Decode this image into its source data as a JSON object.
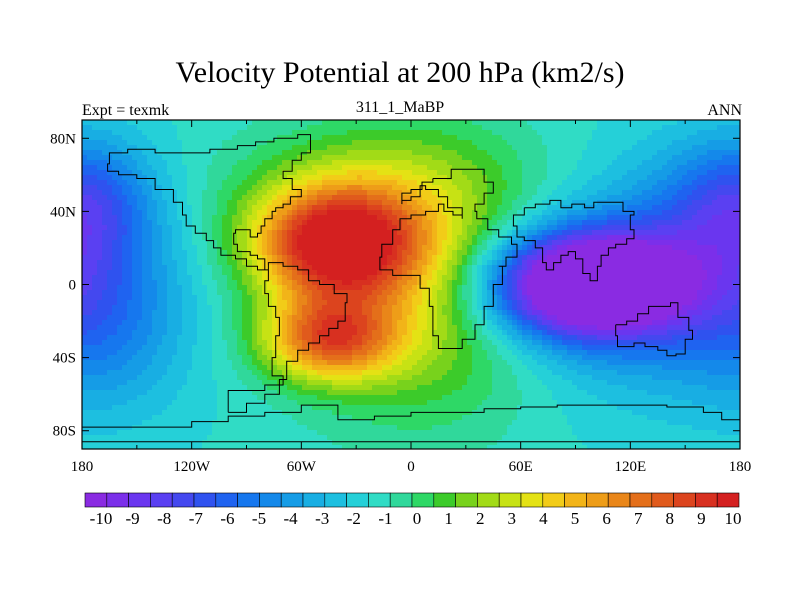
{
  "chart_data": {
    "type": "heatmap",
    "title": "Velocity Potential at 200 hPa (km2/s)",
    "left_string": "Expt = texmk",
    "center_string": "311_1_MaBP",
    "right_string": "ANN",
    "x_ticks": [
      "180",
      "120W",
      "60W",
      "0",
      "60E",
      "120E",
      "180"
    ],
    "x_tick_values": [
      -180,
      -120,
      -60,
      0,
      60,
      120,
      180
    ],
    "y_ticks": [
      "80N",
      "40N",
      "0",
      "40S",
      "80S"
    ],
    "y_tick_values": [
      80,
      40,
      0,
      -40,
      -80
    ],
    "lon_range": [
      -180,
      180
    ],
    "lat_range": [
      -90,
      90
    ],
    "colorbar_labels": [
      "-10",
      "-9",
      "-8",
      "-7",
      "-6",
      "-5",
      "-4",
      "-3",
      "-2",
      "-1",
      "0",
      "1",
      "2",
      "3",
      "4",
      "5",
      "6",
      "7",
      "8",
      "9",
      "10"
    ],
    "colorbar_range": [
      -10.5,
      10.5
    ],
    "colorbar_colors": [
      "#8a2be2",
      "#7b2fea",
      "#6a36ef",
      "#5a40f2",
      "#4448ef",
      "#2f52ef",
      "#1f63f0",
      "#1677ee",
      "#1489ea",
      "#159ce6",
      "#18aee3",
      "#1dbfe0",
      "#25d0d8",
      "#30dcc5",
      "#30d89b",
      "#2ed866",
      "#3ccb2a",
      "#78d21c",
      "#a2db17",
      "#c7e214",
      "#e4e214",
      "#f2cc18",
      "#f2b418",
      "#ee9d18",
      "#e98619",
      "#e46f1a",
      "#e05a1c",
      "#dc441e",
      "#d83020",
      "#d42020"
    ],
    "field_centers": [
      {
        "lon": -42,
        "lat": 22,
        "value": 11.0,
        "sx": 32,
        "sy": 22
      },
      {
        "lon": -45,
        "lat": -30,
        "value": 8.0,
        "sx": 26,
        "sy": 16
      },
      {
        "lon": 5,
        "lat": 0,
        "value": 4.5,
        "sx": 45,
        "sy": 50
      },
      {
        "lon": -20,
        "lat": 55,
        "value": 2.0,
        "sx": 60,
        "sy": 25
      },
      {
        "lon": 95,
        "lat": 0,
        "value": -13.0,
        "sx": 38,
        "sy": 20
      },
      {
        "lon": 140,
        "lat": 0,
        "value": -4.0,
        "sx": 50,
        "sy": 40
      },
      {
        "lon": -175,
        "lat": 45,
        "value": -3.0,
        "sx": 25,
        "sy": 25
      },
      {
        "lon": -165,
        "lat": -20,
        "value": -2.5,
        "sx": 30,
        "sy": 35
      },
      {
        "lon": 170,
        "lat": 45,
        "value": -2.0,
        "sx": 30,
        "sy": 25
      }
    ],
    "field_background": -1.3,
    "coastlines": [
      {
        "name": "eurasia-africa",
        "points": [
          [
            12,
            58
          ],
          [
            22,
            63
          ],
          [
            33,
            63
          ],
          [
            40,
            56
          ],
          [
            45,
            50
          ],
          [
            40,
            44
          ],
          [
            35,
            40
          ],
          [
            36,
            36
          ],
          [
            42,
            30
          ],
          [
            48,
            26
          ],
          [
            55,
            22
          ],
          [
            58,
            15
          ],
          [
            52,
            10
          ],
          [
            48,
            10
          ],
          [
            50,
            0
          ],
          [
            45,
            -12
          ],
          [
            40,
            -22
          ],
          [
            35,
            -30
          ],
          [
            28,
            -35
          ],
          [
            20,
            -35
          ],
          [
            15,
            -28
          ],
          [
            12,
            -12
          ],
          [
            10,
            -2
          ],
          [
            5,
            5
          ],
          [
            -5,
            5
          ],
          [
            -10,
            8
          ],
          [
            -17,
            15
          ],
          [
            -16,
            22
          ],
          [
            -10,
            30
          ],
          [
            -6,
            36
          ],
          [
            0,
            38
          ],
          [
            8,
            40
          ],
          [
            15,
            44
          ],
          [
            18,
            40
          ],
          [
            23,
            38
          ],
          [
            28,
            36
          ],
          [
            28,
            42
          ],
          [
            20,
            48
          ],
          [
            15,
            52
          ],
          [
            8,
            54
          ],
          [
            5,
            48
          ],
          [
            0,
            46
          ],
          [
            -5,
            44
          ],
          [
            -5,
            50
          ],
          [
            0,
            52
          ],
          [
            6,
            56
          ],
          [
            12,
            58
          ]
        ]
      },
      {
        "name": "asia",
        "points": [
          [
            62,
            42
          ],
          [
            68,
            44
          ],
          [
            76,
            46
          ],
          [
            82,
            42
          ],
          [
            88,
            44
          ],
          [
            95,
            42
          ],
          [
            100,
            45
          ],
          [
            108,
            45
          ],
          [
            116,
            40
          ],
          [
            122,
            38
          ],
          [
            120,
            30
          ],
          [
            122,
            25
          ],
          [
            118,
            22
          ],
          [
            112,
            20
          ],
          [
            108,
            16
          ],
          [
            104,
            10
          ],
          [
            102,
            2
          ],
          [
            98,
            6
          ],
          [
            94,
            14
          ],
          [
            90,
            18
          ],
          [
            86,
            16
          ],
          [
            82,
            12
          ],
          [
            78,
            8
          ],
          [
            74,
            12
          ],
          [
            72,
            20
          ],
          [
            68,
            24
          ],
          [
            62,
            26
          ],
          [
            58,
            32
          ],
          [
            56,
            38
          ],
          [
            62,
            42
          ]
        ]
      },
      {
        "name": "americas",
        "points": [
          [
            -100,
            -70
          ],
          [
            -90,
            -65
          ],
          [
            -80,
            -60
          ],
          [
            -72,
            -52
          ],
          [
            -68,
            -42
          ],
          [
            -62,
            -36
          ],
          [
            -56,
            -32
          ],
          [
            -50,
            -28
          ],
          [
            -45,
            -24
          ],
          [
            -40,
            -20
          ],
          [
            -36,
            -10
          ],
          [
            -35,
            -5
          ],
          [
            -42,
            0
          ],
          [
            -50,
            2
          ],
          [
            -56,
            8
          ],
          [
            -62,
            10
          ],
          [
            -70,
            12
          ],
          [
            -78,
            8
          ],
          [
            -84,
            10
          ],
          [
            -90,
            14
          ],
          [
            -96,
            16
          ],
          [
            -104,
            20
          ],
          [
            -108,
            24
          ],
          [
            -112,
            28
          ],
          [
            -118,
            32
          ],
          [
            -123,
            38
          ],
          [
            -125,
            45
          ],
          [
            -130,
            52
          ],
          [
            -140,
            58
          ],
          [
            -150,
            60
          ],
          [
            -160,
            62
          ],
          [
            -166,
            66
          ],
          [
            -165,
            72
          ],
          [
            -155,
            74
          ],
          [
            -140,
            72
          ],
          [
            -125,
            72
          ],
          [
            -110,
            74
          ],
          [
            -95,
            76
          ],
          [
            -85,
            78
          ],
          [
            -75,
            80
          ],
          [
            -62,
            82
          ],
          [
            -55,
            80
          ],
          [
            -55,
            72
          ],
          [
            -60,
            68
          ],
          [
            -65,
            62
          ],
          [
            -70,
            58
          ],
          [
            -65,
            52
          ],
          [
            -60,
            48
          ],
          [
            -66,
            44
          ],
          [
            -70,
            42
          ],
          [
            -74,
            40
          ],
          [
            -76,
            36
          ],
          [
            -80,
            32
          ],
          [
            -82,
            28
          ],
          [
            -84,
            26
          ],
          [
            -88,
            30
          ],
          [
            -92,
            30
          ],
          [
            -96,
            28
          ],
          [
            -97,
            22
          ],
          [
            -95,
            18
          ],
          [
            -88,
            16
          ],
          [
            -84,
            14
          ],
          [
            -80,
            8
          ],
          [
            -78,
            2
          ],
          [
            -80,
            -5
          ],
          [
            -78,
            -12
          ],
          [
            -74,
            -18
          ],
          [
            -72,
            -28
          ],
          [
            -74,
            -40
          ],
          [
            -76,
            -50
          ],
          [
            -70,
            -55
          ],
          [
            -80,
            -58
          ],
          [
            -100,
            -70
          ]
        ]
      },
      {
        "name": "australia",
        "points": [
          [
            112,
            -22
          ],
          [
            118,
            -20
          ],
          [
            124,
            -16
          ],
          [
            130,
            -12
          ],
          [
            136,
            -12
          ],
          [
            142,
            -10
          ],
          [
            146,
            -18
          ],
          [
            152,
            -25
          ],
          [
            154,
            -30
          ],
          [
            150,
            -38
          ],
          [
            145,
            -39
          ],
          [
            140,
            -36
          ],
          [
            135,
            -34
          ],
          [
            128,
            -32
          ],
          [
            122,
            -34
          ],
          [
            116,
            -34
          ],
          [
            113,
            -28
          ],
          [
            112,
            -22
          ]
        ]
      },
      {
        "name": "antarctica",
        "points": [
          [
            -180,
            -86
          ],
          [
            180,
            -86
          ]
        ]
      },
      {
        "name": "antarctica-coast",
        "points": [
          [
            -180,
            -78
          ],
          [
            -150,
            -78
          ],
          [
            -120,
            -75
          ],
          [
            -100,
            -72
          ],
          [
            -80,
            -70
          ],
          [
            -60,
            -66
          ],
          [
            -40,
            -74
          ],
          [
            -20,
            -72
          ],
          [
            0,
            -70
          ],
          [
            20,
            -70
          ],
          [
            40,
            -68
          ],
          [
            60,
            -67
          ],
          [
            80,
            -66
          ],
          [
            100,
            -66
          ],
          [
            120,
            -66
          ],
          [
            140,
            -67
          ],
          [
            160,
            -70
          ],
          [
            170,
            -74
          ],
          [
            180,
            -78
          ]
        ]
      }
    ]
  }
}
